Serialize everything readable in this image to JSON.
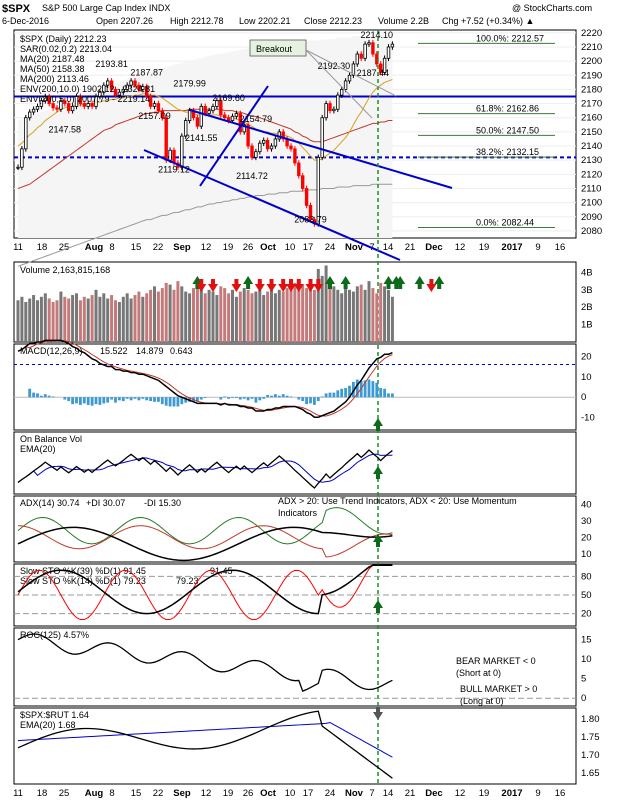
{
  "header": {
    "symbol": "$SPX",
    "name": "S&P 500 Large Cap Index  INDX",
    "watermark": "@ StockCharts.com",
    "date": "6-Dec-2016",
    "open": "Open 2207.26",
    "high": "High 2212.78",
    "low": "Low 2202.21",
    "close": "Close 2212.23",
    "volume": "Volume 2.2B",
    "chg": "Chg +7.52 (+0.34%) ▲"
  },
  "colors": {
    "price_up": "#000000",
    "price_down": "#ff0000",
    "trendline": "#0000cc",
    "ma20": "#d4a21c",
    "ma50": "#c0392b",
    "ma200": "#000000",
    "macd_hist": "#3b9ad4",
    "arrow_up": "#0b6b1a",
    "arrow_down": "#e01010",
    "vline": "#1a8f2a"
  },
  "chart_data": [
    {
      "type": "line",
      "panel": "price",
      "legend": [
        "$SPX (Daily) 2212.23",
        "SAR(0.02,0.2) 2213.04",
        "MA(20) 2187.48",
        "MA(50) 2158.38",
        "MA(200) 2113.46",
        "ENV(200,10.0) 1902.12 - 2324.81",
        "ENV(200,5.0) 2007.79 - 2219.14"
      ],
      "ylim": [
        2075,
        2222
      ],
      "yticks": [
        2080,
        2090,
        2100,
        2110,
        2120,
        2130,
        2140,
        2150,
        2160,
        2170,
        2180,
        2190,
        2200,
        2210,
        2220
      ],
      "x_labels": [
        "11",
        "18",
        "25",
        "Aug",
        "8",
        "15",
        "22",
        "Sep",
        "12",
        "19",
        "26",
        "Oct",
        "10",
        "17",
        "24",
        "Nov",
        "7",
        "14",
        "21",
        "Dec",
        "12",
        "19",
        "2017",
        "9",
        "16"
      ],
      "close": [
        2125,
        2138,
        2160,
        2164,
        2166,
        2168,
        2172,
        2175,
        2170,
        2167,
        2166,
        2172,
        2170,
        2165,
        2168,
        2175,
        2170,
        2168,
        2170,
        2168,
        2175,
        2178,
        2183,
        2186,
        2180,
        2176,
        2178,
        2180,
        2183,
        2186,
        2183,
        2180,
        2182,
        2175,
        2168,
        2170,
        2165,
        2160,
        2130,
        2137,
        2128,
        2125,
        2147,
        2158,
        2165,
        2160,
        2154,
        2168,
        2163,
        2165,
        2168,
        2172,
        2162,
        2160,
        2158,
        2161,
        2163,
        2150,
        2155,
        2140,
        2132,
        2136,
        2142,
        2144,
        2138,
        2140,
        2145,
        2150,
        2145,
        2140,
        2138,
        2128,
        2119,
        2110,
        2098,
        2088,
        2085,
        2132,
        2160,
        2170,
        2165,
        2166,
        2176,
        2180,
        2186,
        2190,
        2198,
        2205,
        2202,
        2212,
        2213,
        2205,
        2198,
        2192,
        2202,
        2210,
        2212
      ],
      "ma20": [
        2140,
        2142,
        2145,
        2148,
        2150,
        2153,
        2155,
        2158,
        2160,
        2162,
        2164,
        2166,
        2167,
        2168,
        2168,
        2169,
        2169,
        2170,
        2170,
        2170,
        2171,
        2171,
        2172,
        2172,
        2173,
        2173,
        2174,
        2174,
        2175,
        2175,
        2176,
        2176,
        2177,
        2177,
        2176,
        2176,
        2175,
        2174,
        2172,
        2170,
        2168,
        2166,
        2165,
        2164,
        2164,
        2163,
        2162,
        2162,
        2162,
        2162,
        2162,
        2162,
        2161,
        2161,
        2160,
        2160,
        2159,
        2158,
        2157,
        2155,
        2154,
        2152,
        2151,
        2150,
        2150,
        2149,
        2149,
        2148,
        2148,
        2147,
        2146,
        2144,
        2142,
        2139,
        2136,
        2133,
        2130,
        2130,
        2131,
        2133,
        2135,
        2137,
        2140,
        2143,
        2146,
        2150,
        2155,
        2160,
        2164,
        2169,
        2174,
        2178,
        2181,
        2183,
        2185,
        2186,
        2187
      ],
      "ma50": [
        2110,
        2111,
        2112,
        2113,
        2115,
        2117,
        2119,
        2121,
        2123,
        2125,
        2127,
        2129,
        2131,
        2133,
        2135,
        2137,
        2139,
        2141,
        2143,
        2145,
        2147,
        2149,
        2151,
        2152,
        2153,
        2155,
        2156,
        2157,
        2158,
        2159,
        2160,
        2161,
        2162,
        2163,
        2163,
        2164,
        2164,
        2165,
        2165,
        2165,
        2165,
        2165,
        2165,
        2165,
        2166,
        2166,
        2166,
        2166,
        2166,
        2166,
        2166,
        2166,
        2166,
        2165,
        2165,
        2165,
        2164,
        2164,
        2163,
        2162,
        2161,
        2161,
        2160,
        2159,
        2158,
        2157,
        2156,
        2155,
        2154,
        2153,
        2152,
        2150,
        2149,
        2147,
        2146,
        2144,
        2143,
        2143,
        2143,
        2144,
        2145,
        2146,
        2147,
        2148,
        2149,
        2150,
        2151,
        2152,
        2153,
        2154,
        2155,
        2156,
        2156,
        2157,
        2157,
        2158,
        2158
      ],
      "ma200": [
        2055,
        2056,
        2057,
        2058,
        2059,
        2060,
        2061,
        2062,
        2063,
        2064,
        2065,
        2066,
        2067,
        2068,
        2069,
        2070,
        2071,
        2072,
        2073,
        2074,
        2075,
        2076,
        2077,
        2078,
        2079,
        2080,
        2081,
        2082,
        2083,
        2084,
        2085,
        2086,
        2087,
        2088,
        2088,
        2089,
        2090,
        2091,
        2091,
        2092,
        2093,
        2093,
        2094,
        2095,
        2095,
        2096,
        2097,
        2097,
        2098,
        2099,
        2099,
        2100,
        2100,
        2101,
        2101,
        2102,
        2102,
        2103,
        2103,
        2104,
        2104,
        2105,
        2105,
        2105,
        2106,
        2106,
        2106,
        2107,
        2107,
        2107,
        2108,
        2108,
        2108,
        2108,
        2109,
        2109,
        2109,
        2109,
        2110,
        2110,
        2110,
        2110,
        2111,
        2111,
        2111,
        2111,
        2112,
        2112,
        2112,
        2112,
        2112,
        2113,
        2113,
        2113,
        2113,
        2113,
        2113
      ],
      "annotations": [
        {
          "text": "2193.81",
          "x": 24,
          "y": 2193.81
        },
        {
          "text": "2187.87",
          "x": 33,
          "y": 2187.87
        },
        {
          "text": "2179.99",
          "x": 44,
          "y": 2179.99
        },
        {
          "text": "2169.60",
          "x": 54,
          "y": 2169.6
        },
        {
          "text": "2157.09",
          "x": 35,
          "y": 2157.09
        },
        {
          "text": "2147.58",
          "x": 12,
          "y": 2147.58
        },
        {
          "text": "2141.55",
          "x": 47,
          "y": 2141.55
        },
        {
          "text": "2154.79",
          "x": 61,
          "y": 2154.79
        },
        {
          "text": "2119.12",
          "x": 40,
          "y": 2119.12
        },
        {
          "text": "2114.72",
          "x": 60,
          "y": 2114.72
        },
        {
          "text": "2083.79",
          "x": 75,
          "y": 2083.79
        },
        {
          "text": "2192.30",
          "x": 81,
          "y": 2192.3
        },
        {
          "text": "2187.44",
          "x": 91,
          "y": 2187.44
        },
        {
          "text": "2214.10",
          "x": 92,
          "y": 2214.1
        },
        {
          "text": "Breakout",
          "x": 50,
          "y": 2210
        }
      ],
      "fib_levels": [
        {
          "label": "100.0%: 2212.57",
          "value": 2212.57
        },
        {
          "label": "61.8%: 2162.86",
          "value": 2162.86
        },
        {
          "label": "50.0%: 2147.50",
          "value": 2147.5
        },
        {
          "label": "38.2%: 2132.15",
          "value": 2132.15
        },
        {
          "label": "0.0%: 2082.44",
          "value": 2082.44
        }
      ],
      "support_resistance": [
        2175,
        2132
      ]
    },
    {
      "type": "bar",
      "panel": "volume",
      "legend": "Volume 2,163,815,168",
      "yticks_label": [
        "1B",
        "2B",
        "3B",
        "4B"
      ],
      "ylim": [
        0,
        4.6
      ],
      "values": [
        2.4,
        2.6,
        2.3,
        2.5,
        2.7,
        2.4,
        2.6,
        2.8,
        2.5,
        2.3,
        2.4,
        2.9,
        2.6,
        2.5,
        2.7,
        2.8,
        2.4,
        2.6,
        2.5,
        2.7,
        3.0,
        2.6,
        2.8,
        2.5,
        2.7,
        2.4,
        2.3,
        2.6,
        2.8,
        2.5,
        2.7,
        2.9,
        2.6,
        2.8,
        3.0,
        3.2,
        2.9,
        3.1,
        3.4,
        3.3,
        3.0,
        3.5,
        3.2,
        2.9,
        2.8,
        3.1,
        3.4,
        3.0,
        2.8,
        3.0,
        2.9,
        2.7,
        3.2,
        3.1,
        2.8,
        3.0,
        2.6,
        2.9,
        3.1,
        3.0,
        2.8,
        2.9,
        3.0,
        2.7,
        2.9,
        3.1,
        2.8,
        3.0,
        2.9,
        3.1,
        3.2,
        3.4,
        3.0,
        3.3,
        3.1,
        3.2,
        3.0,
        4.2,
        3.8,
        4.4,
        3.6,
        3.2,
        3.0,
        2.8,
        3.4,
        3.0,
        2.9,
        3.2,
        3.3,
        3.0,
        3.5,
        3.1,
        2.8,
        3.4,
        3.2,
        3.0,
        2.6
      ]
    },
    {
      "type": "line",
      "panel": "macd",
      "legend": [
        "MACD(12,26,9)",
        "15.522",
        "14.879",
        "0.643"
      ],
      "yticks": [
        -10,
        0,
        10,
        20
      ],
      "ylim": [
        -16,
        26
      ]
    },
    {
      "type": "line",
      "panel": "obv",
      "legend": [
        "On Balance Vol",
        "EMA(20)"
      ]
    },
    {
      "type": "line",
      "panel": "adx",
      "legend": [
        "ADX(14) 30.74",
        "+DI 30.07",
        "-DI 15.30"
      ],
      "note": "ADX > 20: Use Trend Indicators, ADX < 20: Use Momentum Indicators",
      "yticks": [
        10,
        20,
        30,
        40
      ],
      "ylim": [
        5,
        45
      ]
    },
    {
      "type": "line",
      "panel": "sto",
      "legend": [
        "Slow STO %K(39) %D(1) 91.45",
        "91.45",
        "Slow STO %K(14) %D(1) 79.23",
        "79.23"
      ],
      "yticks": [
        20,
        50,
        80
      ],
      "ylim": [
        0,
        100
      ]
    },
    {
      "type": "line",
      "panel": "roc",
      "legend": "ROC(125) 4.57%",
      "yticks": [
        0,
        5,
        10,
        15
      ],
      "ylim": [
        -2,
        18
      ],
      "notes": [
        "BEAR MARKET < 0",
        "(Short at 0)",
        "BULL MARKET > 0",
        "(Long at 0)"
      ]
    },
    {
      "type": "line",
      "panel": "ratio",
      "legend": [
        "$SPX:$RUT 1.64",
        "EMA(20) 1.68"
      ],
      "yticks": [
        1.65,
        1.7,
        1.75,
        1.8
      ],
      "ylim": [
        1.62,
        1.83
      ]
    }
  ]
}
